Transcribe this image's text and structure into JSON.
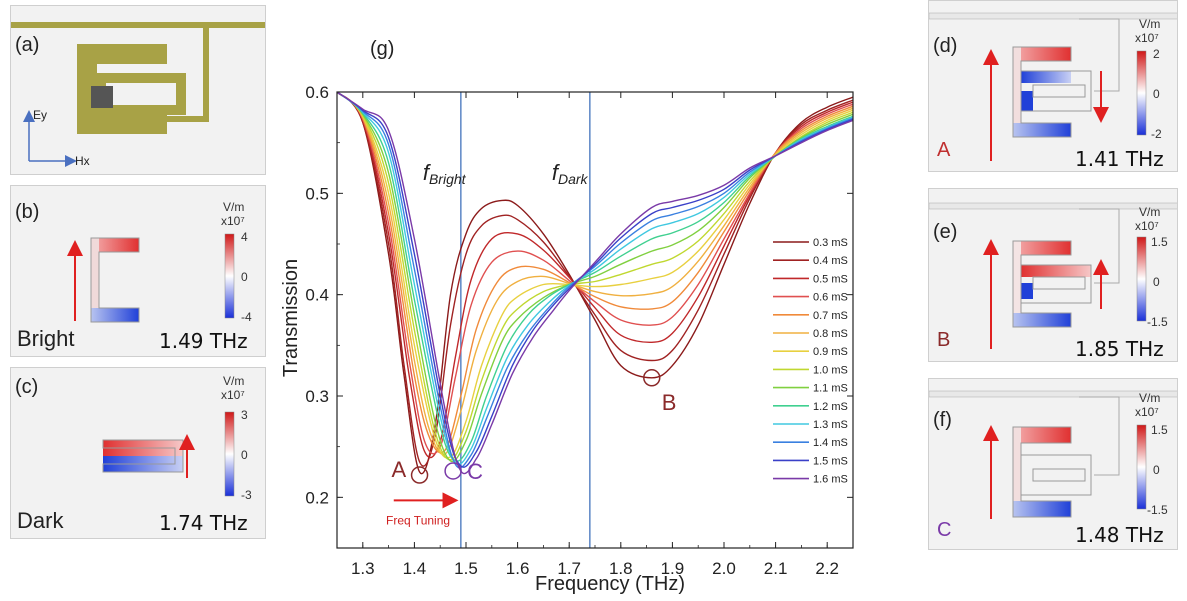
{
  "panels": {
    "a": {
      "label": "(a)",
      "ey": "Ey",
      "hx": "Hx"
    },
    "b": {
      "label": "(b)",
      "unit": "V/m",
      "scale": "x10⁷",
      "max": "4",
      "mid": "0",
      "min": "-4",
      "mode": "Bright",
      "freq": "1.49 THz"
    },
    "c": {
      "label": "(c)",
      "unit": "V/m",
      "scale": "x10⁷",
      "max": "3",
      "mid": "0",
      "min": "-3",
      "mode": "Dark",
      "freq": "1.74 THz"
    },
    "d": {
      "label": "(d)",
      "unit": "V/m",
      "scale": "x10⁷",
      "max": "2",
      "mid": "0",
      "min": "-2",
      "point": "A",
      "freq": "1.41 THz"
    },
    "e": {
      "label": "(e)",
      "unit": "V/m",
      "scale": "x10⁷",
      "max": "1.5",
      "mid": "0",
      "min": "-1.5",
      "point": "B",
      "freq": "1.85 THz"
    },
    "f": {
      "label": "(f)",
      "unit": "V/m",
      "scale": "x10⁷",
      "max": "1.5",
      "mid": "0",
      "min": "-1.5",
      "point": "C",
      "freq": "1.48 THz"
    }
  },
  "colors": {
    "positive": "#e02020",
    "negative": "#1a3fd8",
    "resonator": "#a8a246",
    "bright_line": "#5b86c5",
    "label_B": "#8b2a2a",
    "label_C": "#7a3aa8"
  },
  "chart_data": {
    "type": "line",
    "panel_label": "(g)",
    "xlabel": "Frequency (THz)",
    "ylabel": "Transmission",
    "xlim": [
      1.25,
      2.25
    ],
    "ylim": [
      0.15,
      0.6
    ],
    "xticks": [
      "1.3",
      "1.4",
      "1.5",
      "1.6",
      "1.7",
      "1.8",
      "1.9",
      "2.0",
      "2.1",
      "2.2"
    ],
    "yticks": [
      "0.2",
      "0.3",
      "0.4",
      "0.5",
      "0.6"
    ],
    "vlines": [
      {
        "x": 1.49,
        "label_main": "f",
        "label_sub": "Bright"
      },
      {
        "x": 1.74,
        "label_main": "f",
        "label_sub": "Dark"
      }
    ],
    "annotations": [
      {
        "text": "A",
        "x": 1.41,
        "y": 0.222
      },
      {
        "text": "B",
        "x": 1.86,
        "y": 0.318
      },
      {
        "text": "C",
        "x": 1.475,
        "y": 0.226
      }
    ],
    "arrow_label": "Freq Tuning",
    "legend_position": "right",
    "series": [
      {
        "name": "0.3 mS",
        "color": "#8b1a1a",
        "x": [
          1.25,
          1.3,
          1.35,
          1.38,
          1.41,
          1.44,
          1.47,
          1.5,
          1.53,
          1.57,
          1.6,
          1.65,
          1.7,
          1.75,
          1.8,
          1.86,
          1.9,
          1.95,
          2.0,
          2.05,
          2.1,
          2.15,
          2.2,
          2.25
        ],
        "y": [
          0.6,
          0.57,
          0.44,
          0.32,
          0.225,
          0.27,
          0.4,
          0.46,
          0.485,
          0.493,
          0.488,
          0.46,
          0.42,
          0.375,
          0.33,
          0.318,
          0.33,
          0.37,
          0.43,
          0.49,
          0.54,
          0.57,
          0.585,
          0.595
        ]
      },
      {
        "name": "0.4 mS",
        "color": "#a02222",
        "x": [
          1.25,
          1.3,
          1.35,
          1.38,
          1.41,
          1.44,
          1.47,
          1.5,
          1.53,
          1.57,
          1.6,
          1.65,
          1.7,
          1.75,
          1.8,
          1.86,
          1.9,
          1.95,
          2.0,
          2.05,
          2.1,
          2.15,
          2.2,
          2.25
        ],
        "y": [
          0.6,
          0.57,
          0.45,
          0.33,
          0.235,
          0.26,
          0.37,
          0.44,
          0.468,
          0.478,
          0.474,
          0.452,
          0.418,
          0.38,
          0.345,
          0.335,
          0.345,
          0.385,
          0.44,
          0.495,
          0.54,
          0.568,
          0.582,
          0.592
        ]
      },
      {
        "name": "0.5 mS",
        "color": "#c0282a",
        "x": [
          1.25,
          1.3,
          1.35,
          1.39,
          1.42,
          1.45,
          1.48,
          1.51,
          1.55,
          1.6,
          1.65,
          1.7,
          1.75,
          1.8,
          1.86,
          1.9,
          1.95,
          2.0,
          2.05,
          2.1,
          2.15,
          2.2,
          2.25
        ],
        "y": [
          0.6,
          0.572,
          0.46,
          0.32,
          0.245,
          0.255,
          0.34,
          0.415,
          0.455,
          0.46,
          0.444,
          0.417,
          0.387,
          0.36,
          0.353,
          0.362,
          0.398,
          0.448,
          0.498,
          0.54,
          0.566,
          0.58,
          0.59
        ]
      },
      {
        "name": "0.6 mS",
        "color": "#e05050",
        "x": [
          1.25,
          1.3,
          1.35,
          1.39,
          1.42,
          1.45,
          1.48,
          1.51,
          1.55,
          1.6,
          1.65,
          1.7,
          1.75,
          1.8,
          1.86,
          1.9,
          1.95,
          2.0,
          2.05,
          2.1,
          2.15,
          2.2,
          2.25
        ],
        "y": [
          0.6,
          0.573,
          0.47,
          0.335,
          0.255,
          0.25,
          0.32,
          0.39,
          0.432,
          0.443,
          0.434,
          0.414,
          0.393,
          0.375,
          0.37,
          0.378,
          0.41,
          0.455,
          0.5,
          0.54,
          0.564,
          0.578,
          0.588
        ]
      },
      {
        "name": "0.7 mS",
        "color": "#f08a3a",
        "x": [
          1.25,
          1.3,
          1.35,
          1.4,
          1.43,
          1.46,
          1.49,
          1.52,
          1.56,
          1.6,
          1.65,
          1.7,
          1.75,
          1.8,
          1.86,
          1.9,
          1.95,
          2.0,
          2.05,
          2.1,
          2.15,
          2.2,
          2.25
        ],
        "y": [
          0.6,
          0.574,
          0.48,
          0.32,
          0.258,
          0.247,
          0.3,
          0.366,
          0.412,
          0.427,
          0.425,
          0.412,
          0.398,
          0.388,
          0.386,
          0.393,
          0.422,
          0.462,
          0.503,
          0.54,
          0.562,
          0.576,
          0.586
        ]
      },
      {
        "name": "0.8 mS",
        "color": "#f0b040",
        "x": [
          1.25,
          1.3,
          1.35,
          1.4,
          1.43,
          1.46,
          1.49,
          1.52,
          1.56,
          1.6,
          1.65,
          1.7,
          1.75,
          1.8,
          1.86,
          1.9,
          1.95,
          2.0,
          2.05,
          2.1,
          2.15,
          2.2,
          2.25
        ],
        "y": [
          0.6,
          0.575,
          0.49,
          0.335,
          0.265,
          0.243,
          0.285,
          0.345,
          0.394,
          0.413,
          0.418,
          0.411,
          0.403,
          0.399,
          0.401,
          0.408,
          0.433,
          0.468,
          0.506,
          0.539,
          0.56,
          0.574,
          0.584
        ]
      },
      {
        "name": "0.9 mS",
        "color": "#e8d040",
        "x": [
          1.25,
          1.3,
          1.35,
          1.4,
          1.44,
          1.47,
          1.5,
          1.53,
          1.57,
          1.6,
          1.65,
          1.7,
          1.75,
          1.8,
          1.86,
          1.9,
          1.95,
          2.0,
          2.05,
          2.1,
          2.15,
          2.2,
          2.25
        ],
        "y": [
          0.6,
          0.576,
          0.5,
          0.35,
          0.258,
          0.24,
          0.275,
          0.33,
          0.38,
          0.398,
          0.41,
          0.41,
          0.408,
          0.41,
          0.416,
          0.422,
          0.443,
          0.474,
          0.509,
          0.538,
          0.558,
          0.572,
          0.582
        ]
      },
      {
        "name": "1.0 mS",
        "color": "#c0d830",
        "x": [
          1.25,
          1.3,
          1.35,
          1.4,
          1.44,
          1.47,
          1.5,
          1.53,
          1.57,
          1.6,
          1.65,
          1.7,
          1.75,
          1.8,
          1.86,
          1.9,
          1.95,
          2.0,
          2.05,
          2.1,
          2.15,
          2.2,
          2.25
        ],
        "y": [
          0.6,
          0.577,
          0.51,
          0.365,
          0.265,
          0.237,
          0.265,
          0.315,
          0.366,
          0.386,
          0.403,
          0.41,
          0.413,
          0.42,
          0.43,
          0.436,
          0.453,
          0.48,
          0.512,
          0.537,
          0.556,
          0.57,
          0.58
        ]
      },
      {
        "name": "1.1 mS",
        "color": "#80d040",
        "x": [
          1.25,
          1.3,
          1.35,
          1.4,
          1.44,
          1.47,
          1.5,
          1.53,
          1.57,
          1.6,
          1.65,
          1.7,
          1.75,
          1.8,
          1.86,
          1.9,
          1.95,
          2.0,
          2.05,
          2.1,
          2.15,
          2.2,
          2.25
        ],
        "y": [
          0.6,
          0.578,
          0.52,
          0.38,
          0.275,
          0.236,
          0.256,
          0.302,
          0.354,
          0.376,
          0.397,
          0.41,
          0.418,
          0.43,
          0.443,
          0.449,
          0.463,
          0.486,
          0.515,
          0.537,
          0.555,
          0.568,
          0.578
        ]
      },
      {
        "name": "1.2 mS",
        "color": "#40d090",
        "x": [
          1.25,
          1.3,
          1.35,
          1.4,
          1.45,
          1.48,
          1.51,
          1.54,
          1.58,
          1.62,
          1.66,
          1.7,
          1.75,
          1.8,
          1.86,
          1.9,
          1.95,
          2.0,
          2.05,
          2.1,
          2.15,
          2.2,
          2.25
        ],
        "y": [
          0.6,
          0.579,
          0.53,
          0.395,
          0.27,
          0.236,
          0.255,
          0.3,
          0.35,
          0.38,
          0.398,
          0.41,
          0.422,
          0.438,
          0.455,
          0.461,
          0.472,
          0.491,
          0.517,
          0.537,
          0.554,
          0.566,
          0.576
        ]
      },
      {
        "name": "1.3 mS",
        "color": "#40c8e0",
        "x": [
          1.25,
          1.3,
          1.35,
          1.4,
          1.45,
          1.48,
          1.51,
          1.54,
          1.58,
          1.62,
          1.66,
          1.7,
          1.75,
          1.8,
          1.86,
          1.9,
          1.95,
          2.0,
          2.05,
          2.1,
          2.15,
          2.2,
          2.25
        ],
        "y": [
          0.6,
          0.58,
          0.54,
          0.41,
          0.28,
          0.234,
          0.248,
          0.288,
          0.338,
          0.37,
          0.392,
          0.409,
          0.425,
          0.445,
          0.465,
          0.471,
          0.48,
          0.496,
          0.519,
          0.537,
          0.553,
          0.565,
          0.575
        ]
      },
      {
        "name": "1.4 mS",
        "color": "#3a80e0",
        "x": [
          1.25,
          1.3,
          1.35,
          1.4,
          1.45,
          1.48,
          1.51,
          1.54,
          1.58,
          1.62,
          1.66,
          1.7,
          1.75,
          1.8,
          1.86,
          1.9,
          1.95,
          2.0,
          2.05,
          2.1,
          2.15,
          2.2,
          2.25
        ],
        "y": [
          0.6,
          0.581,
          0.548,
          0.425,
          0.29,
          0.232,
          0.242,
          0.278,
          0.328,
          0.362,
          0.387,
          0.408,
          0.428,
          0.451,
          0.473,
          0.479,
          0.487,
          0.5,
          0.521,
          0.537,
          0.552,
          0.564,
          0.574
        ]
      },
      {
        "name": "1.5 mS",
        "color": "#3a40c8",
        "x": [
          1.25,
          1.3,
          1.35,
          1.4,
          1.46,
          1.49,
          1.52,
          1.55,
          1.59,
          1.63,
          1.67,
          1.7,
          1.75,
          1.8,
          1.86,
          1.9,
          1.95,
          2.0,
          2.05,
          2.1,
          2.15,
          2.2,
          2.25
        ],
        "y": [
          0.6,
          0.582,
          0.555,
          0.44,
          0.275,
          0.231,
          0.245,
          0.28,
          0.33,
          0.365,
          0.39,
          0.406,
          0.43,
          0.456,
          0.48,
          0.486,
          0.493,
          0.504,
          0.523,
          0.537,
          0.551,
          0.563,
          0.573
        ]
      },
      {
        "name": "1.6 mS",
        "color": "#7a3aa8",
        "x": [
          1.25,
          1.3,
          1.35,
          1.4,
          1.46,
          1.49,
          1.52,
          1.55,
          1.59,
          1.63,
          1.67,
          1.7,
          1.75,
          1.8,
          1.86,
          1.9,
          1.95,
          2.0,
          2.05,
          2.1,
          2.15,
          2.2,
          2.25
        ],
        "y": [
          0.6,
          0.583,
          0.562,
          0.455,
          0.285,
          0.226,
          0.238,
          0.272,
          0.322,
          0.358,
          0.385,
          0.404,
          0.432,
          0.46,
          0.486,
          0.492,
          0.498,
          0.508,
          0.525,
          0.537,
          0.55,
          0.562,
          0.572
        ]
      }
    ]
  }
}
